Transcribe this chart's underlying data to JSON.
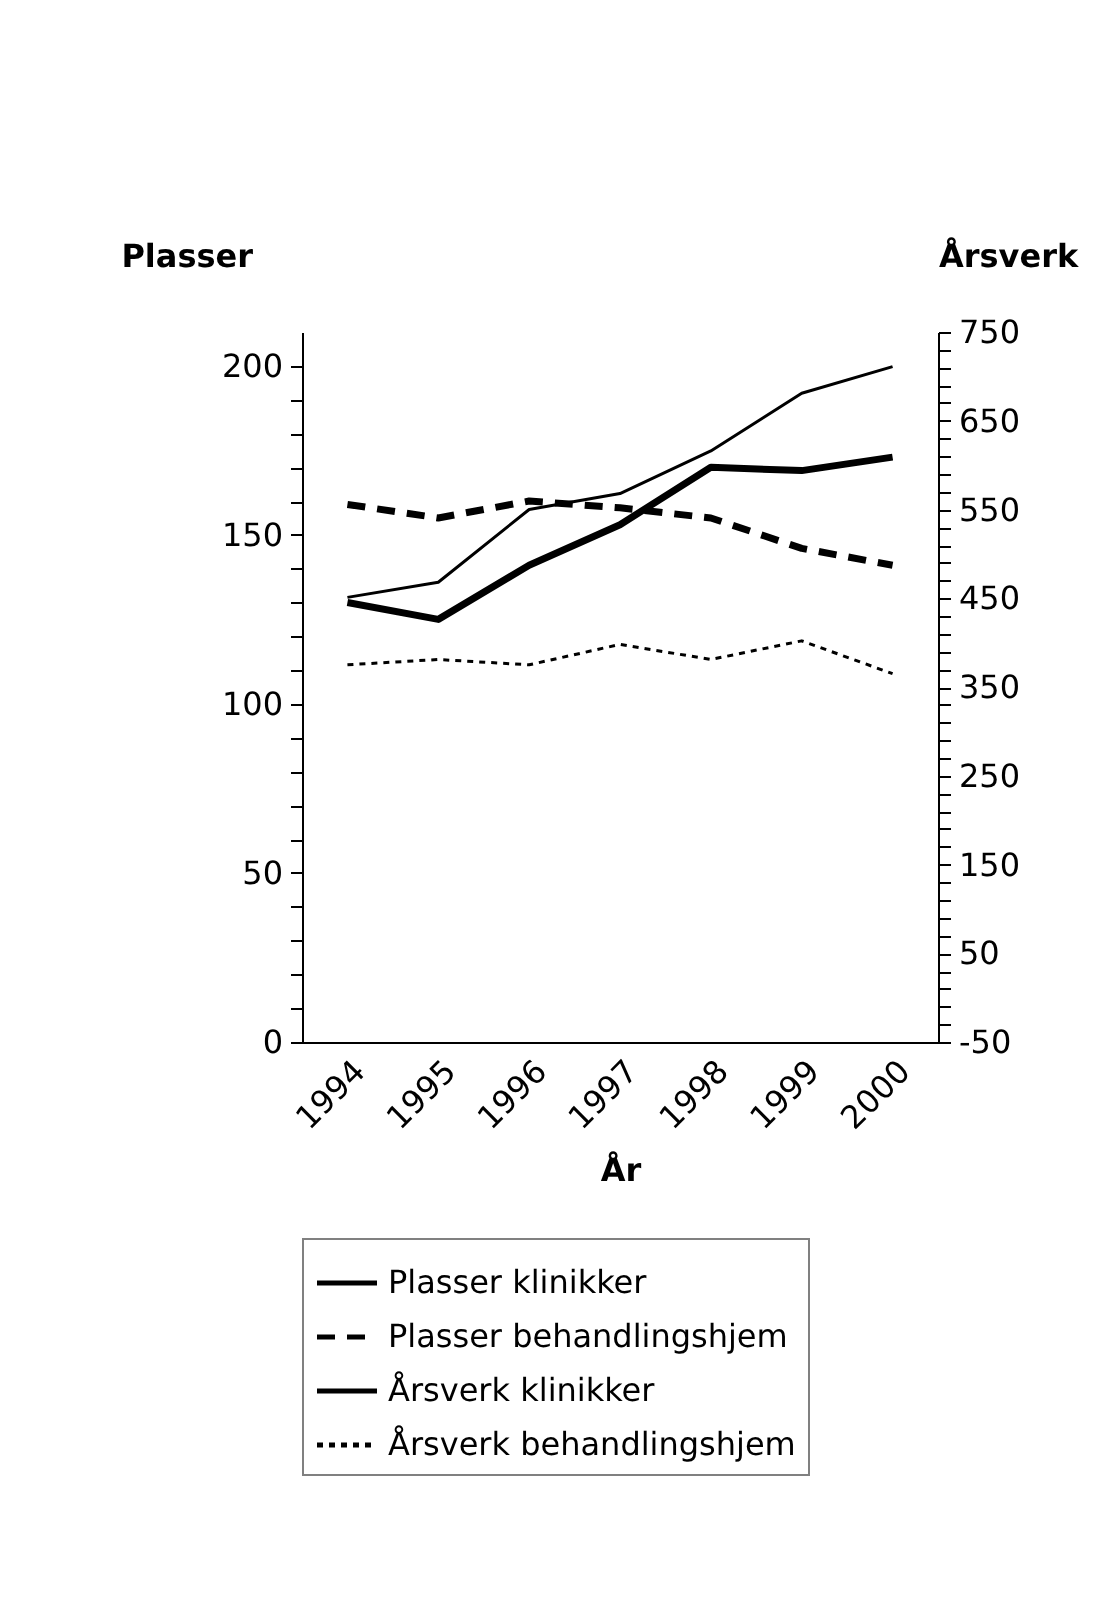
{
  "chart_data": {
    "type": "line",
    "xlabel": "År",
    "ylabel": "Plasser",
    "y2label": "Årsverk",
    "categories": [
      "1994",
      "1995",
      "1996",
      "1997",
      "1998",
      "1999",
      "2000"
    ],
    "series": [
      {
        "name": "Plasser klinikker",
        "color": "#000000",
        "line_style": "solid",
        "values": [
          130,
          125,
          141,
          153,
          170,
          169,
          173
        ]
      },
      {
        "name": "Plasser behandlingshjem",
        "color": "#000000",
        "line_style": "dashed",
        "values": [
          159,
          155,
          160,
          158,
          155,
          146,
          141
        ]
      },
      {
        "name": "Årsverk klinikker",
        "color": "#000000",
        "line_style": "solid",
        "axis": "y2",
        "values": [
          451,
          468,
          550,
          568,
          616,
          681,
          711
        ]
      },
      {
        "name": "Årsverk behandlingshjem",
        "color": "#000000",
        "line_style": "dotted",
        "axis": "y2",
        "values": [
          375,
          381,
          375,
          398,
          381,
          402,
          365
        ]
      }
    ],
    "ylim": [
      0,
      210
    ],
    "yticks": [
      0,
      {
        "value": 10,
        "label": null
      },
      {
        "value": 20,
        "label": null
      },
      {
        "value": 30,
        "label": null
      },
      {
        "value": 40,
        "label": null
      },
      50,
      {
        "value": 60,
        "label": null
      },
      {
        "value": 70,
        "label": null
      },
      {
        "value": 80,
        "label": null
      },
      {
        "value": 90,
        "label": null
      },
      100,
      {
        "value": 110,
        "label": null
      },
      {
        "value": 120,
        "label": null
      },
      {
        "value": 130,
        "label": null
      },
      {
        "value": 140,
        "label": null
      },
      150,
      {
        "value": 160,
        "label": null
      },
      {
        "value": 170,
        "label": null
      },
      {
        "value": 180,
        "label": null
      },
      {
        "value": 190,
        "label": null
      },
      200
    ],
    "y2lim": [
      -50,
      750
    ],
    "y2ticks": [
      -50,
      {
        "value": -30,
        "label": null
      },
      {
        "value": -10,
        "label": null
      },
      {
        "value": 10,
        "label": null
      },
      {
        "value": 30,
        "label": null
      },
      50,
      {
        "value": 70,
        "label": null
      },
      {
        "value": 90,
        "label": null
      },
      {
        "value": 110,
        "label": null
      },
      {
        "value": 130,
        "label": null
      },
      150,
      {
        "value": 170,
        "label": null
      },
      {
        "value": 190,
        "label": null
      },
      {
        "value": 210,
        "label": null
      },
      {
        "value": 230,
        "label": null
      },
      250,
      {
        "value": 270,
        "label": null
      },
      {
        "value": 290,
        "label": null
      },
      {
        "value": 310,
        "label": null
      },
      {
        "value": 330,
        "label": null
      },
      350,
      {
        "value": 370,
        "label": null
      },
      {
        "value": 390,
        "label": null
      },
      {
        "value": 410,
        "label": null
      },
      {
        "value": 430,
        "label": null
      },
      450,
      {
        "value": 470,
        "label": null
      },
      {
        "value": 490,
        "label": null
      },
      {
        "value": 510,
        "label": null
      },
      {
        "value": 530,
        "label": null
      },
      550,
      {
        "value": 570,
        "label": null
      },
      {
        "value": 590,
        "label": null
      },
      {
        "value": 610,
        "label": null
      },
      {
        "value": 630,
        "label": null
      },
      650,
      {
        "value": 670,
        "label": null
      },
      {
        "value": 690,
        "label": null
      },
      {
        "value": 710,
        "label": null
      },
      {
        "value": 730,
        "label": null
      },
      750
    ],
    "grid": false,
    "legend": "bottom"
  }
}
